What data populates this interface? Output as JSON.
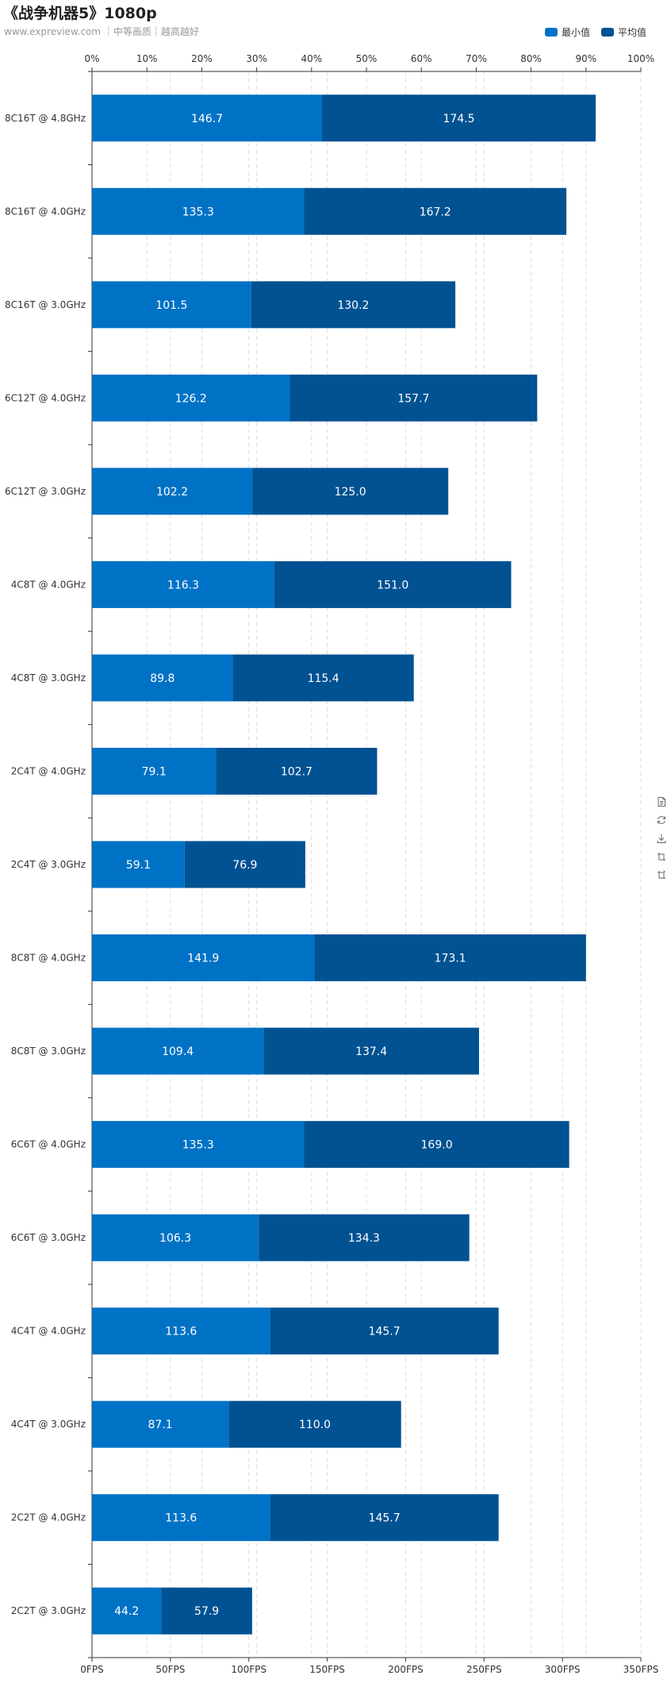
{
  "header": {
    "title": "《战争机器5》1080p",
    "subtitle": "www.expreview.com ｜中等画质｜越高越好"
  },
  "colors": {
    "min_bar": "#0072c6",
    "avg_bar": "#005292"
  },
  "toolbox": {
    "icons": [
      "data-view-icon",
      "restore-icon",
      "save-image-icon",
      "zoom-icon",
      "zoom-reset-icon"
    ]
  },
  "chart_data": {
    "type": "bar",
    "orientation": "horizontal",
    "stacked": true,
    "categories": [
      "8C16T @ 4.8GHz",
      "8C16T @ 4.0GHz",
      "8C16T @ 3.0GHz",
      "6C12T @ 4.0GHz",
      "6C12T @ 3.0GHz",
      "4C8T @ 4.0GHz",
      "4C8T @ 3.0GHz",
      "2C4T @ 4.0GHz",
      "2C4T @ 3.0GHz",
      "8C8T @ 4.0GHz",
      "8C8T @ 3.0GHz",
      "6C6T @ 4.0GHz",
      "6C6T @ 3.0GHz",
      "4C4T @ 4.0GHz",
      "4C4T @ 3.0GHz",
      "2C2T @ 4.0GHz",
      "2C2T @ 3.0GHz"
    ],
    "series": [
      {
        "name": "最小值",
        "color": "#0072c6",
        "values": [
          "146.7",
          "135.3",
          "101.5",
          "126.2",
          "102.2",
          "116.3",
          "89.8",
          "79.1",
          "59.1",
          "141.9",
          "109.4",
          "135.3",
          "106.3",
          "113.6",
          "87.1",
          "113.6",
          "44.2"
        ]
      },
      {
        "name": "平均值",
        "color": "#005292",
        "values": [
          "174.5",
          "167.2",
          "130.2",
          "157.7",
          "125.0",
          "151.0",
          "115.4",
          "102.7",
          "76.9",
          "173.1",
          "137.4",
          "169.0",
          "134.3",
          "145.7",
          "110.0",
          "145.7",
          "57.9"
        ]
      }
    ],
    "x_bottom": {
      "min": 0,
      "max": 350,
      "ticks": [
        "0FPS",
        "50FPS",
        "100FPS",
        "150FPS",
        "200FPS",
        "250FPS",
        "300FPS",
        "350FPS"
      ]
    },
    "x_top": {
      "min": 0,
      "max": 100,
      "ticks": [
        "0%",
        "10%",
        "20%",
        "30%",
        "40%",
        "50%",
        "60%",
        "70%",
        "80%",
        "90%",
        "100%"
      ]
    },
    "grid": true,
    "legend_position": "top-right"
  }
}
